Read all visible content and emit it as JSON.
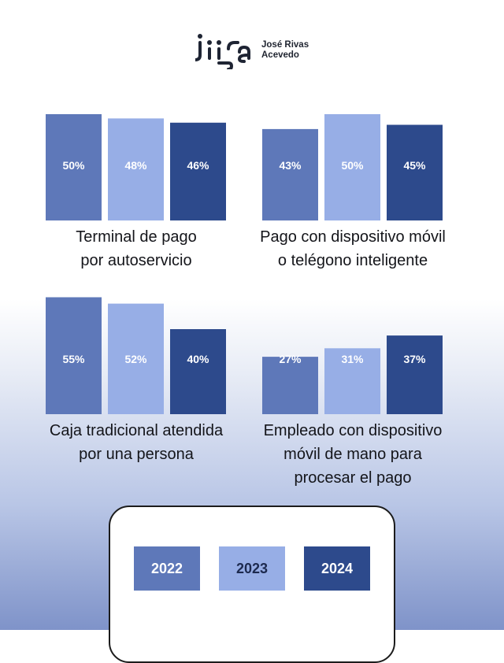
{
  "brand": {
    "logo_text": "irisa",
    "name_line1": "José Rivas",
    "name_line2": "Acevedo"
  },
  "colors": {
    "2022": "#5e78b9",
    "2023": "#97aee6",
    "2024": "#2d4a8c",
    "legend_text_2022": "#ffffff",
    "legend_text_2023": "#1d2a4f",
    "legend_text_2024": "#ffffff"
  },
  "legend": {
    "items": [
      {
        "label": "2022"
      },
      {
        "label": "2023"
      },
      {
        "label": "2024"
      }
    ]
  },
  "chart_data": [
    {
      "type": "bar",
      "title": "Terminal de pago por autoservicio",
      "title_lines": [
        "Terminal de pago",
        "por autoservicio"
      ],
      "categories": [
        "2022",
        "2023",
        "2024"
      ],
      "values": [
        50,
        48,
        46
      ],
      "labels": [
        "50%",
        "48%",
        "46%"
      ]
    },
    {
      "type": "bar",
      "title": "Pago con dispositivo móvil o telégono inteligente",
      "title_lines": [
        "Pago con dispositivo móvil",
        "o telégono inteligente"
      ],
      "categories": [
        "2022",
        "2023",
        "2024"
      ],
      "values": [
        43,
        50,
        45
      ],
      "labels": [
        "43%",
        "50%",
        "45%"
      ]
    },
    {
      "type": "bar",
      "title": "Caja tradicional atendida por una persona",
      "title_lines": [
        "Caja tradicional atendida",
        "por una persona"
      ],
      "categories": [
        "2022",
        "2023",
        "2024"
      ],
      "values": [
        55,
        52,
        40
      ],
      "labels": [
        "55%",
        "52%",
        "40%"
      ]
    },
    {
      "type": "bar",
      "title": "Empleado con dispositivo móvil de mano para procesar el pago",
      "title_lines": [
        "Empleado con dispositivo",
        "móvil de mano para",
        "procesar el pago"
      ],
      "categories": [
        "2022",
        "2023",
        "2024"
      ],
      "values": [
        27,
        31,
        37
      ],
      "labels": [
        "27%",
        "31%",
        "37%"
      ]
    }
  ]
}
